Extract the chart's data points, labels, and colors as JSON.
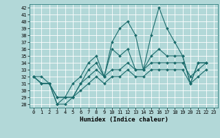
{
  "xlabel": "Humidex (Indice chaleur)",
  "bg_color": "#b2d8d8",
  "grid_color": "#ffffff",
  "line_color": "#1a6b6b",
  "xlim": [
    -0.5,
    23.5
  ],
  "ylim": [
    27.5,
    42.5
  ],
  "yticks": [
    28,
    29,
    30,
    31,
    32,
    33,
    34,
    35,
    36,
    37,
    38,
    39,
    40,
    41,
    42
  ],
  "xticks": [
    0,
    1,
    2,
    3,
    4,
    5,
    6,
    7,
    8,
    9,
    10,
    11,
    12,
    13,
    14,
    15,
    16,
    17,
    18,
    19,
    20,
    21,
    22,
    23
  ],
  "series": [
    [
      32,
      31,
      31,
      28,
      29,
      29,
      31,
      33,
      34,
      32,
      37,
      39,
      40,
      38,
      33,
      38,
      42,
      39,
      37,
      35,
      31,
      34,
      34,
      null
    ],
    [
      32,
      31,
      31,
      29,
      29,
      31,
      32,
      34,
      35,
      32,
      36,
      35,
      36,
      33,
      33,
      35,
      36,
      35,
      35,
      35,
      31,
      34,
      34,
      null
    ],
    [
      32,
      32,
      31,
      29,
      29,
      29,
      31,
      32,
      33,
      32,
      33,
      33,
      34,
      33,
      33,
      34,
      34,
      34,
      34,
      34,
      32,
      33,
      34,
      null
    ],
    [
      32,
      31,
      31,
      28,
      28,
      29,
      30,
      31,
      32,
      31,
      32,
      32,
      33,
      32,
      32,
      33,
      33,
      33,
      33,
      33,
      31,
      32,
      33,
      null
    ]
  ]
}
